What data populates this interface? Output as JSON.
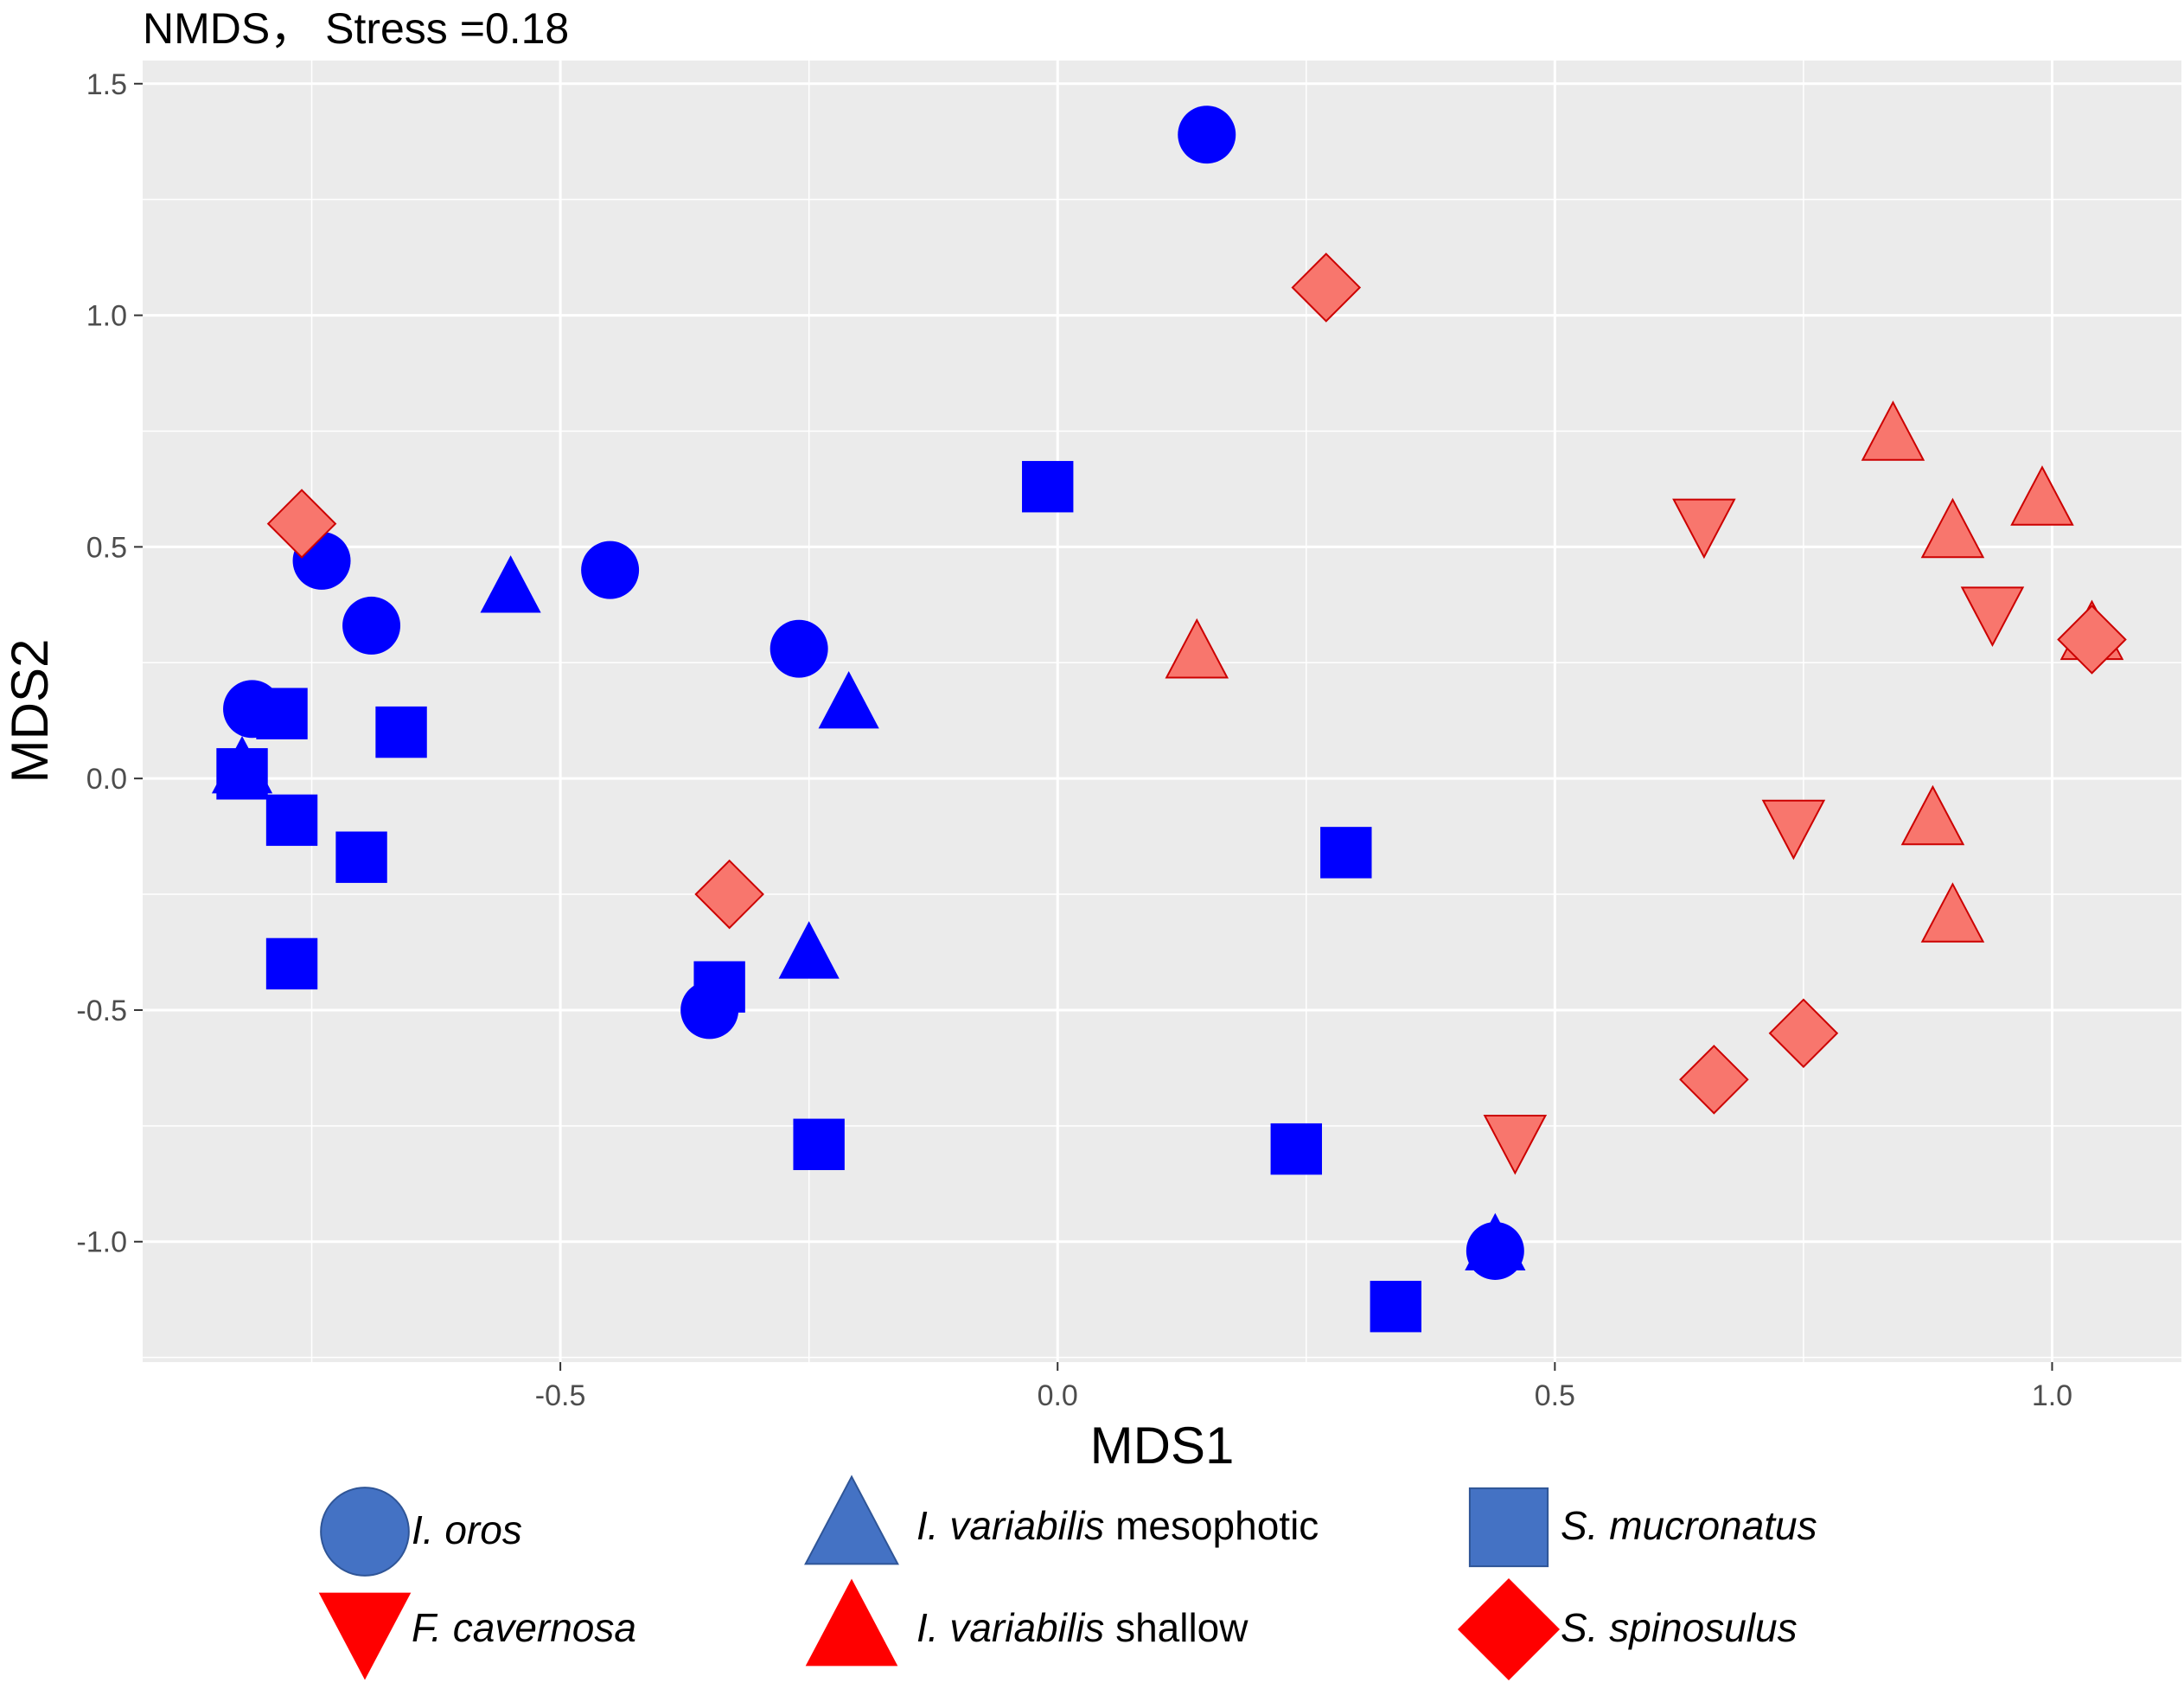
{
  "chart_data": {
    "type": "scatter",
    "title": "NMDS， Stress =0.18",
    "xlabel": "MDS1",
    "ylabel": "MDS2",
    "xlim": [
      -0.92,
      1.13
    ],
    "ylim": [
      -1.26,
      1.55
    ],
    "xticks": [
      -0.5,
      0.0,
      0.5,
      1.0
    ],
    "xtick_labels": [
      "-0.5",
      "0.0",
      "0.5",
      "1.0"
    ],
    "yticks": [
      -1.0,
      -0.5,
      0.0,
      0.5,
      1.0,
      1.5
    ],
    "ytick_labels": [
      "-1.0",
      "-0.5",
      "0.0",
      "0.5",
      "1.0",
      "1.5"
    ],
    "grid": true,
    "legend_position": "bottom",
    "colors": {
      "panel_bg": "#ebebeb",
      "grid": "#ffffff",
      "blue_points": "#0000ff",
      "red_points": "#f8766d",
      "red_stroke": "#cc0000",
      "legend_blue": "#4472c4",
      "legend_red": "#ff0000"
    },
    "series": [
      {
        "name": "I. oros",
        "label_italic": "I. oros",
        "label_plain": "",
        "shape": "circle",
        "color_group": "blue",
        "points": [
          [
            0.15,
            1.39
          ],
          [
            -0.74,
            0.47
          ],
          [
            -0.69,
            0.33
          ],
          [
            -0.45,
            0.45
          ],
          [
            -0.26,
            0.28
          ],
          [
            -0.81,
            0.15
          ],
          [
            -0.35,
            -0.5
          ],
          [
            0.44,
            -1.02
          ]
        ]
      },
      {
        "name": "I. variabilis mesophotic",
        "label_italic": "I. variabilis",
        "label_plain": " mesophotic",
        "shape": "triangle-up",
        "color_group": "blue",
        "points": [
          [
            -0.55,
            0.41
          ],
          [
            -0.21,
            0.16
          ],
          [
            -0.82,
            0.02
          ],
          [
            -0.25,
            -0.38
          ],
          [
            0.44,
            -1.01
          ]
        ]
      },
      {
        "name": "S. mucronatus",
        "label_italic": "S. mucronatus",
        "label_plain": "",
        "shape": "square",
        "color_group": "blue",
        "points": [
          [
            -0.01,
            0.63
          ],
          [
            -0.78,
            0.14
          ],
          [
            -0.66,
            0.1
          ],
          [
            -0.82,
            0.01
          ],
          [
            -0.77,
            -0.09
          ],
          [
            -0.7,
            -0.17
          ],
          [
            -0.77,
            -0.4
          ],
          [
            -0.34,
            -0.45
          ],
          [
            -0.24,
            -0.79
          ],
          [
            0.29,
            -0.16
          ],
          [
            0.24,
            -0.8
          ],
          [
            0.34,
            -1.14
          ]
        ]
      },
      {
        "name": "F. cavernosa",
        "label_italic": "F. cavernosa",
        "label_plain": "",
        "shape": "triangle-down",
        "color_group": "red",
        "points": [
          [
            0.65,
            0.55
          ],
          [
            0.94,
            0.36
          ],
          [
            0.74,
            -0.1
          ],
          [
            0.46,
            -0.78
          ]
        ]
      },
      {
        "name": "I. variabilis shallow",
        "label_italic": "I. variabilis",
        "label_plain": " shallow",
        "shape": "triangle-up",
        "color_group": "red",
        "points": [
          [
            0.84,
            0.74
          ],
          [
            0.99,
            0.6
          ],
          [
            0.9,
            0.53
          ],
          [
            1.04,
            0.31
          ],
          [
            0.14,
            0.27
          ],
          [
            0.88,
            -0.09
          ],
          [
            0.9,
            -0.3
          ]
        ]
      },
      {
        "name": "S. spinosulus",
        "label_italic": "S. spinosulus",
        "label_plain": "",
        "shape": "diamond",
        "color_group": "red",
        "points": [
          [
            0.27,
            1.06
          ],
          [
            -0.76,
            0.55
          ],
          [
            1.04,
            0.3
          ],
          [
            -0.33,
            -0.25
          ],
          [
            0.75,
            -0.55
          ],
          [
            0.66,
            -0.65
          ]
        ]
      }
    ]
  }
}
